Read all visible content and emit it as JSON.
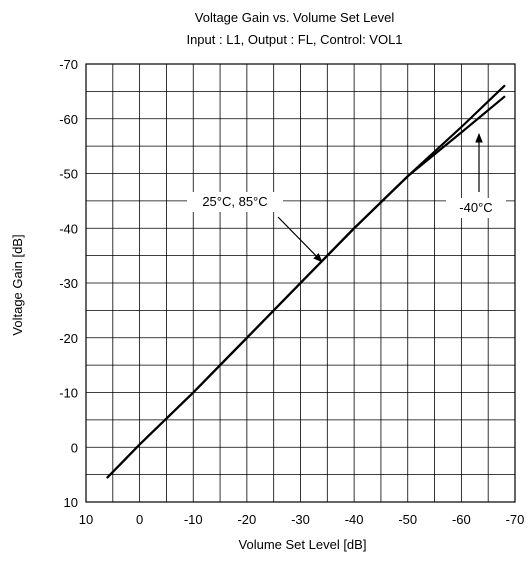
{
  "chart_data": {
    "type": "line",
    "title": "Voltage Gain vs. Volume Set Level",
    "subtitle": "Input : L1, Output : FL, Control: VOL1",
    "xlabel": "Volume Set Level [dB]",
    "ylabel": "Voltage Gain [dB]",
    "xlim": [
      10,
      -70
    ],
    "ylim": [
      10,
      -70
    ],
    "x_ticks": [
      10,
      0,
      -10,
      -20,
      -30,
      -40,
      -50,
      -60,
      -70
    ],
    "y_ticks": [
      10,
      0,
      -10,
      -20,
      -30,
      -40,
      -50,
      -60,
      -70
    ],
    "x_tick_labels": [
      "10",
      "0",
      "-10",
      "-20",
      "-30",
      "-40",
      "-50",
      "-60",
      "-70"
    ],
    "y_tick_labels": [
      "10",
      "0",
      "-10",
      "-20",
      "-30",
      "-40",
      "-50",
      "-60",
      "-70"
    ],
    "grid": true,
    "series": [
      {
        "name": "25°C, 85°C",
        "x": [
          6,
          0,
          -10,
          -20,
          -30,
          -40,
          -50,
          -60,
          -68
        ],
        "y": [
          5.5,
          -0.5,
          -10,
          -20,
          -30,
          -40,
          -49.5,
          -58.5,
          -66
        ]
      },
      {
        "name": "-40°C",
        "x": [
          6,
          0,
          -10,
          -20,
          -30,
          -40,
          -50,
          -60,
          -68
        ],
        "y": [
          5.5,
          -0.5,
          -10,
          -20,
          -30,
          -40,
          -49.5,
          -57.5,
          -64
        ]
      }
    ],
    "annotations": [
      {
        "text": "25°C, 85°C",
        "target_series": 0
      },
      {
        "text": "-40°C",
        "target_series": 1
      }
    ]
  }
}
